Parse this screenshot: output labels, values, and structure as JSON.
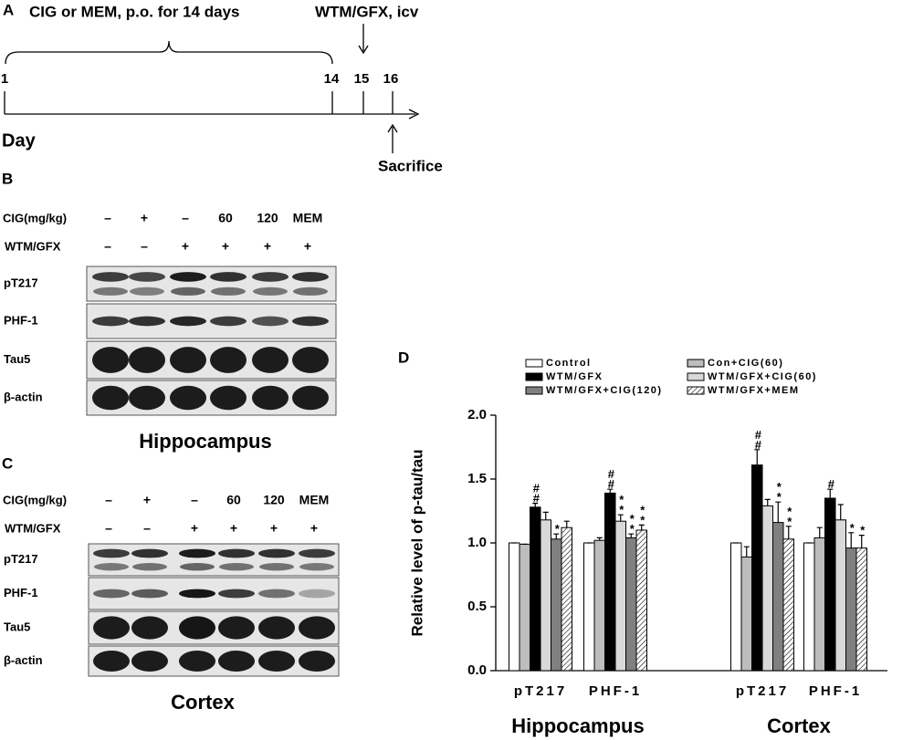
{
  "panel_a": {
    "label": "A",
    "treatment": "CIG or MEM, p.o. for 14 days",
    "injection": "WTM/GFX, icv",
    "days": [
      "1",
      "14",
      "15",
      "16"
    ],
    "axis_label": "Day",
    "endpoint": "Sacrifice"
  },
  "panel_b": {
    "label": "B",
    "row_labels": [
      "CIG(mg/kg)",
      "WTM/GFX"
    ],
    "cig": [
      "–",
      "+",
      "–",
      "60",
      "120",
      "MEM"
    ],
    "wtm": [
      "–",
      "–",
      "+",
      "+",
      "+",
      "+"
    ],
    "bands": [
      "pT217",
      "PHF-1",
      "Tau5",
      "β-actin"
    ],
    "region": "Hippocampus"
  },
  "panel_c": {
    "label": "C",
    "row_labels": [
      "CIG(mg/kg)",
      "WTM/GFX"
    ],
    "cig": [
      "–",
      "+",
      "–",
      "60",
      "120",
      "MEM"
    ],
    "wtm": [
      "–",
      "–",
      "+",
      "+",
      "+",
      "+"
    ],
    "bands": [
      "pT217",
      "PHF-1",
      "Tau5",
      "β-actin"
    ],
    "region": "Cortex"
  },
  "chart_data": {
    "type": "bar",
    "panel_label": "D",
    "y_label": "Relative level of p-tau/tau",
    "categories": [
      "pT217",
      "PHF-1",
      "pT217",
      "PHF-1"
    ],
    "group_labels": [
      "Hippocampus",
      "Cortex"
    ],
    "ylim": [
      0,
      2
    ],
    "yticks": [
      {
        "value": 0,
        "label": "0.0"
      },
      {
        "value": 0.5,
        "label": "0.5"
      },
      {
        "value": 1,
        "label": "1.0"
      },
      {
        "value": 1.5,
        "label": "1.5"
      },
      {
        "value": 2,
        "label": "2.0"
      }
    ],
    "series": [
      {
        "name": "Control",
        "color": "#ffffff",
        "values": [
          1.0,
          1.0,
          1.0,
          1.0
        ],
        "errors": [
          0,
          0,
          0,
          0
        ],
        "annotations": [
          null,
          null,
          null,
          null
        ]
      },
      {
        "name": "Con+CIG(60)",
        "color": "#bdbdbd",
        "values": [
          0.99,
          1.02,
          0.89,
          1.04
        ],
        "errors": [
          0,
          0.02,
          0.08,
          0.08
        ],
        "annotations": [
          null,
          null,
          null,
          null
        ]
      },
      {
        "name": "WTM/GFX",
        "color": "#000000",
        "values": [
          1.28,
          1.39,
          1.61,
          1.35
        ],
        "errors": [
          0.03,
          0.03,
          0.12,
          0.07
        ],
        "annotations": [
          "##",
          "##",
          "##",
          "#"
        ]
      },
      {
        "name": "WTM/GFX+CIG(60)",
        "color": "#d9d9d9",
        "values": [
          1.18,
          1.17,
          1.29,
          1.18
        ],
        "errors": [
          0.06,
          0.05,
          0.05,
          0.12
        ],
        "annotations": [
          null,
          "**",
          null,
          null
        ]
      },
      {
        "name": "WTM/GFX+CIG(120)",
        "color": "#808080",
        "values": [
          1.03,
          1.04,
          1.16,
          0.96
        ],
        "errors": [
          0.04,
          0.03,
          0.16,
          0.12
        ],
        "annotations": [
          "*",
          "**",
          "**",
          "*"
        ]
      },
      {
        "name": "WTM/GFX+MEM",
        "color": "#ffffff",
        "hatch": true,
        "values": [
          1.12,
          1.1,
          1.03,
          0.96
        ],
        "errors": [
          0.05,
          0.04,
          0.1,
          0.1
        ],
        "annotations": [
          null,
          "**",
          "**",
          "*"
        ]
      }
    ]
  }
}
